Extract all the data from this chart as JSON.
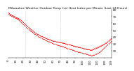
{
  "title": "Milwaukee Weather Outdoor Temp (vs) Heat Index per Minute (Last 24 Hours)",
  "title_fontsize": 3.2,
  "background_color": "#ffffff",
  "grid_color": "#bbbbbb",
  "line_color": "#ff0000",
  "y_values_temp": [
    75,
    74,
    73,
    72,
    72,
    71,
    71,
    70,
    70,
    69,
    68,
    68,
    67,
    67,
    66,
    65,
    65,
    64,
    63,
    62,
    61,
    60,
    59,
    58,
    57,
    56,
    55,
    54,
    53,
    52,
    51,
    50,
    49,
    49,
    48,
    47,
    46,
    46,
    45,
    44,
    44,
    43,
    43,
    42,
    41,
    41,
    40,
    40,
    40,
    39,
    38,
    38,
    37,
    37,
    37,
    36,
    36,
    36,
    35,
    35,
    34,
    34,
    34,
    34,
    33,
    33,
    33,
    33,
    32,
    32,
    32,
    32,
    32,
    31,
    31,
    31,
    31,
    30,
    30,
    30,
    29,
    29,
    29,
    29,
    28,
    28,
    28,
    27,
    27,
    27,
    26,
    26,
    26,
    26,
    25,
    25,
    25,
    25,
    24,
    24,
    24,
    23,
    23,
    23,
    23,
    22,
    22,
    22,
    22,
    22,
    21,
    21,
    21,
    21,
    22,
    22,
    23,
    23,
    24,
    24,
    25,
    25,
    26,
    26,
    27,
    27,
    28,
    28,
    29,
    29,
    30,
    31,
    31,
    32,
    33,
    34,
    35,
    36,
    37,
    38
  ],
  "y_values_heat": [
    73,
    72,
    71,
    71,
    70,
    70,
    69,
    68,
    68,
    67,
    67,
    66,
    65,
    65,
    64,
    63,
    62,
    61,
    60,
    59,
    58,
    57,
    56,
    55,
    54,
    53,
    52,
    51,
    50,
    49,
    48,
    48,
    47,
    46,
    45,
    44,
    44,
    43,
    42,
    42,
    41,
    40,
    40,
    39,
    39,
    38,
    37,
    37,
    37,
    36,
    35,
    35,
    34,
    34,
    33,
    33,
    33,
    32,
    32,
    31,
    31,
    30,
    30,
    30,
    29,
    29,
    28,
    28,
    28,
    27,
    27,
    27,
    27,
    26,
    26,
    25,
    25,
    25,
    24,
    24,
    23,
    23,
    23,
    22,
    22,
    22,
    21,
    21,
    21,
    20,
    20,
    19,
    19,
    19,
    18,
    18,
    18,
    18,
    17,
    17,
    17,
    16,
    16,
    16,
    16,
    15,
    15,
    15,
    14,
    14,
    14,
    14,
    13,
    13,
    14,
    14,
    14,
    15,
    15,
    16,
    16,
    17,
    18,
    18,
    19,
    20,
    21,
    22,
    23,
    24,
    25,
    26,
    27,
    28,
    29,
    30,
    31,
    32,
    33,
    34
  ],
  "ylim": [
    10,
    80
  ],
  "yticks": [
    20,
    30,
    40,
    50,
    60,
    70,
    80
  ],
  "num_points": 140,
  "dashed_vlines": [
    23,
    70
  ],
  "xtick_indices": [
    0,
    10,
    20,
    30,
    40,
    50,
    60,
    70,
    80,
    90,
    100,
    110,
    120,
    130,
    139
  ],
  "tick_fontsize": 2.8
}
